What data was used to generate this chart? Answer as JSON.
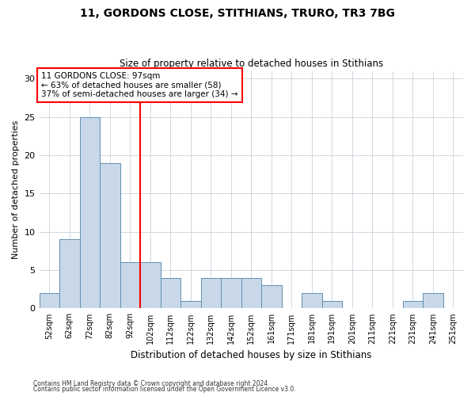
{
  "title1": "11, GORDONS CLOSE, STITHIANS, TRURO, TR3 7BG",
  "title2": "Size of property relative to detached houses in Stithians",
  "xlabel": "Distribution of detached houses by size in Stithians",
  "ylabel": "Number of detached properties",
  "bin_labels": [
    "52sqm",
    "62sqm",
    "72sqm",
    "82sqm",
    "92sqm",
    "102sqm",
    "112sqm",
    "122sqm",
    "132sqm",
    "142sqm",
    "152sqm",
    "161sqm",
    "171sqm",
    "181sqm",
    "191sqm",
    "201sqm",
    "211sqm",
    "221sqm",
    "231sqm",
    "241sqm",
    "251sqm"
  ],
  "bar_heights": [
    2,
    9,
    25,
    19,
    6,
    6,
    4,
    1,
    4,
    4,
    4,
    3,
    0,
    2,
    1,
    0,
    0,
    0,
    1,
    2,
    0
  ],
  "bar_color": "#c8d8e8",
  "bar_edge_color": "#6090b0",
  "property_line_x": 4.5,
  "property_line_label": "11 GORDONS CLOSE: 97sqm",
  "annotation_line1": "← 63% of detached houses are smaller (58)",
  "annotation_line2": "37% of semi-detached houses are larger (34) →",
  "annotation_box_color": "white",
  "annotation_box_edge": "red",
  "vline_color": "red",
  "ylim": [
    0,
    31
  ],
  "yticks": [
    0,
    5,
    10,
    15,
    20,
    25,
    30
  ],
  "footnote1": "Contains HM Land Registry data © Crown copyright and database right 2024.",
  "footnote2": "Contains public sector information licensed under the Open Government Licence v3.0."
}
